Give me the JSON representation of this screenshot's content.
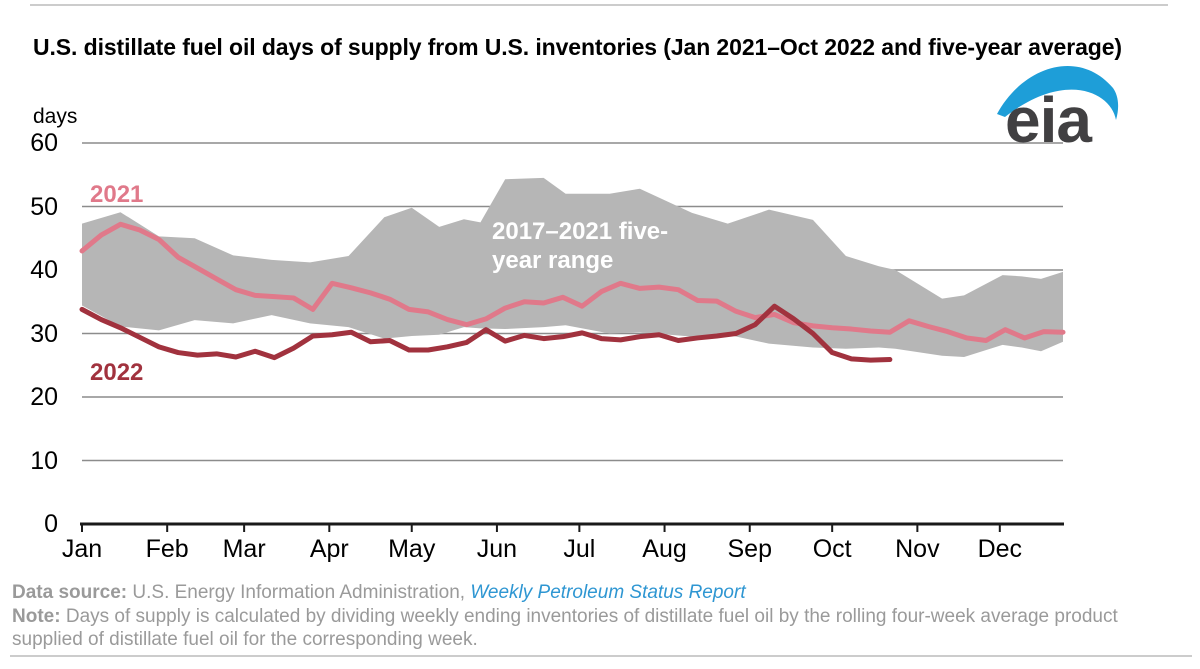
{
  "title": "U.S. distillate fuel oil days of supply from U.S. inventories (Jan 2021–Oct 2022 and five-year average)",
  "y_axis_unit_label": "days",
  "logo": {
    "text": "eia",
    "swoosh_color": "#1e9ed8",
    "text_color": "#414042"
  },
  "annotations": {
    "series_2021_label": "2021",
    "series_2022_label": "2022",
    "range_label": "2017–2021 five-year range"
  },
  "footer": {
    "data_source_label": "Data source:",
    "data_source_text": "U.S. Energy Information Administration,",
    "report_link_text": "Weekly Petroleum Status Report",
    "note_label": "Note:",
    "note_text": "Days of supply is calculated by dividing weekly ending inventories of distillate fuel oil by the rolling four-week average product supplied of distillate fuel oil for the corresponding week."
  },
  "chart_data": {
    "type": "line",
    "title": "U.S. distillate fuel oil days of supply from U.S. inventories (Jan 2021–Oct 2022 and five-year average)",
    "xlabel": "",
    "ylabel": "days",
    "ylim": [
      0,
      60
    ],
    "y_ticks": [
      0,
      10,
      20,
      30,
      40,
      50,
      60
    ],
    "grid": "horizontal",
    "legend": "inline-annotations",
    "x_unit": "weekly observations, days since Jan 1",
    "x_domain_days": [
      0,
      357
    ],
    "x_tick_labels": [
      "Jan",
      "Feb",
      "Mar",
      "Apr",
      "May",
      "Jun",
      "Jul",
      "Aug",
      "Sep",
      "Oct",
      "Nov",
      "Dec"
    ],
    "x_tick_days": [
      0,
      31,
      59,
      90,
      120,
      151,
      181,
      212,
      243,
      273,
      304,
      334
    ],
    "colors": {
      "series_2021": "#e0798a",
      "series_2022": "#a1323e",
      "band": "#b6b6b6",
      "gridline": "#8c8c8c",
      "axis": "#1a1a1a"
    },
    "band": {
      "name": "2017–2021 five-year range",
      "color": "#b6b6b6",
      "days": [
        0,
        14,
        28,
        41,
        55,
        69,
        83,
        97,
        110,
        120,
        130,
        139,
        145,
        154,
        168,
        176,
        192,
        203,
        222,
        235,
        250,
        266,
        278,
        290,
        296,
        313,
        321,
        335,
        342,
        349,
        357
      ],
      "max": [
        47.3,
        49.1,
        45.3,
        45.0,
        42.3,
        41.6,
        41.2,
        42.2,
        48.3,
        49.8,
        46.8,
        48.0,
        47.5,
        54.3,
        54.5,
        52.0,
        52.0,
        52.8,
        49.0,
        47.3,
        49.5,
        47.9,
        42.2,
        40.6,
        40.0,
        35.5,
        36.0,
        39.2,
        39.0,
        38.6,
        39.7
      ],
      "min": [
        34.4,
        31.1,
        30.5,
        32.1,
        31.6,
        32.9,
        31.6,
        31.0,
        29.2,
        29.6,
        29.8,
        31.0,
        30.8,
        30.7,
        31.0,
        31.3,
        30.0,
        30.2,
        29.5,
        29.8,
        28.4,
        27.8,
        27.6,
        27.8,
        27.6,
        26.5,
        26.3,
        28.2,
        27.8,
        27.2,
        28.7
      ]
    },
    "series": [
      {
        "name": "2021",
        "color": "#e0798a",
        "week_interval_days": 7,
        "start_day": 0,
        "values": [
          43.0,
          45.5,
          47.2,
          46.3,
          44.8,
          42.0,
          40.3,
          38.6,
          36.9,
          36.0,
          35.8,
          35.6,
          33.8,
          37.9,
          37.2,
          36.4,
          35.4,
          33.8,
          33.4,
          32.2,
          31.4,
          32.3,
          34.0,
          35.0,
          34.8,
          35.7,
          34.3,
          36.6,
          37.9,
          37.1,
          37.3,
          36.9,
          35.2,
          35.1,
          33.5,
          32.5,
          33.0,
          31.7,
          31.2,
          30.9,
          30.7,
          30.4,
          30.2,
          32.0,
          31.1,
          30.3,
          29.3,
          28.9,
          30.6,
          29.3,
          30.3,
          30.2
        ]
      },
      {
        "name": "2022",
        "color": "#a1323e",
        "week_interval_days": 7,
        "start_day": 0,
        "values": [
          33.8,
          32.2,
          30.9,
          29.4,
          27.9,
          27.0,
          26.6,
          26.8,
          26.3,
          27.2,
          26.2,
          27.7,
          29.6,
          29.8,
          30.2,
          28.7,
          28.9,
          27.4,
          27.4,
          27.9,
          28.6,
          30.6,
          28.8,
          29.7,
          29.2,
          29.5,
          30.1,
          29.2,
          29.0,
          29.5,
          29.8,
          28.9,
          29.3,
          29.6,
          30.0,
          31.4,
          34.3,
          32.3,
          30.0,
          27.0,
          26.0,
          25.8,
          25.9
        ]
      }
    ]
  }
}
